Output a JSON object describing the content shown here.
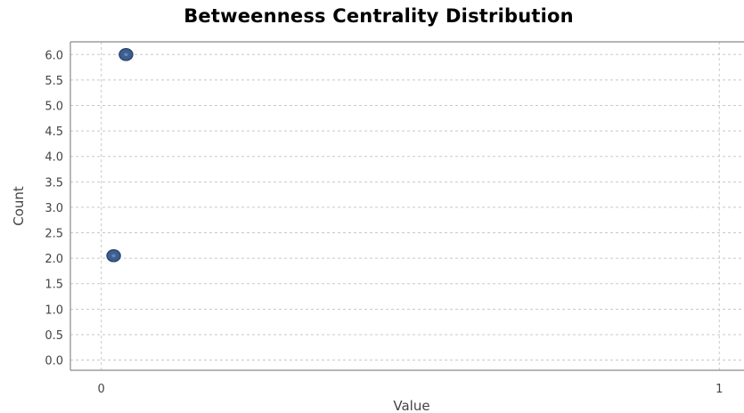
{
  "chart_data": {
    "type": "scatter",
    "title": "Betweenness Centrality Distribution",
    "xlabel": "Value",
    "ylabel": "Count",
    "xlim": [
      -0.05,
      1.04
    ],
    "ylim": [
      -0.2,
      6.25
    ],
    "x_ticks": [
      0,
      1
    ],
    "x_tick_labels": [
      "0",
      "1"
    ],
    "y_ticks": [
      0.0,
      0.5,
      1.0,
      1.5,
      2.0,
      2.5,
      3.0,
      3.5,
      4.0,
      4.5,
      5.0,
      5.5,
      6.0
    ],
    "y_tick_labels": [
      "0.0",
      "0.5",
      "1.0",
      "1.5",
      "2.0",
      "2.5",
      "3.0",
      "3.5",
      "4.0",
      "4.5",
      "5.0",
      "5.5",
      "6.0"
    ],
    "grid": true,
    "legend": "none",
    "colors": {
      "marker": "#3d5f8f",
      "marker_edge": "#2a4670",
      "grid": "#c8c8c8",
      "plot_border": "#8a8a8a"
    },
    "series": [
      {
        "points": [
          {
            "x": 0.04,
            "y": 6.0
          },
          {
            "x": 0.02,
            "y": 2.05
          }
        ]
      }
    ]
  }
}
